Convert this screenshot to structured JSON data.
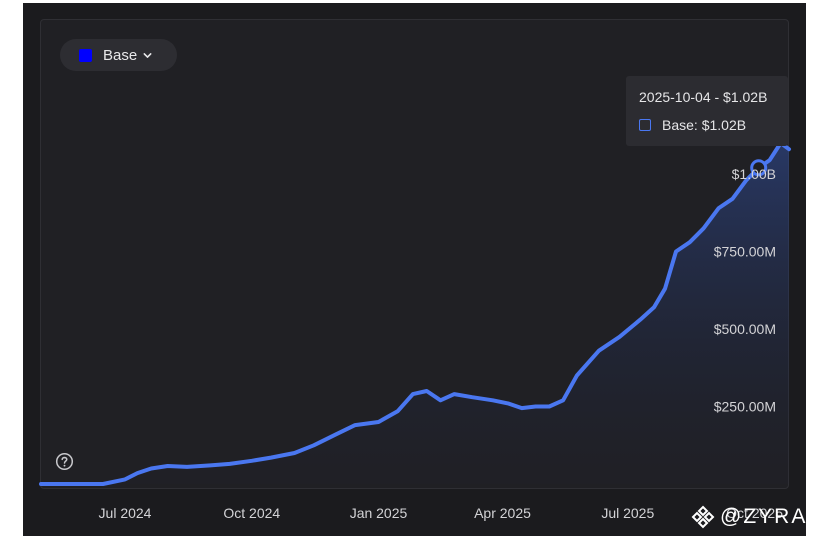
{
  "legend": {
    "label": "Base",
    "color": "#0000ff"
  },
  "tooltip": {
    "title": "2025-10-04 - $1.02B",
    "row": "Base: $1.02B"
  },
  "watermark": {
    "text": "@ZYRA"
  },
  "chart_data": {
    "type": "area",
    "series": [
      {
        "name": "Base",
        "color": "#4a77f0",
        "points": [
          [
            "2024-05-01",
            0
          ],
          [
            "2024-06-15",
            0
          ],
          [
            "2024-07-01",
            15
          ],
          [
            "2024-07-10",
            35
          ],
          [
            "2024-07-20",
            50
          ],
          [
            "2024-08-01",
            58
          ],
          [
            "2024-08-15",
            55
          ],
          [
            "2024-09-01",
            60
          ],
          [
            "2024-09-15",
            65
          ],
          [
            "2024-10-01",
            75
          ],
          [
            "2024-10-15",
            85
          ],
          [
            "2024-11-01",
            100
          ],
          [
            "2024-11-15",
            125
          ],
          [
            "2024-12-01",
            160
          ],
          [
            "2024-12-15",
            190
          ],
          [
            "2025-01-01",
            200
          ],
          [
            "2025-01-15",
            235
          ],
          [
            "2025-01-26",
            290
          ],
          [
            "2025-02-05",
            300
          ],
          [
            "2025-02-15",
            270
          ],
          [
            "2025-02-25",
            290
          ],
          [
            "2025-03-10",
            280
          ],
          [
            "2025-03-25",
            270
          ],
          [
            "2025-04-05",
            260
          ],
          [
            "2025-04-15",
            245
          ],
          [
            "2025-04-25",
            250
          ],
          [
            "2025-05-05",
            250
          ],
          [
            "2025-05-15",
            270
          ],
          [
            "2025-05-25",
            350
          ],
          [
            "2025-06-10",
            430
          ],
          [
            "2025-06-25",
            475
          ],
          [
            "2025-07-10",
            530
          ],
          [
            "2025-07-20",
            570
          ],
          [
            "2025-07-28",
            630
          ],
          [
            "2025-08-05",
            750
          ],
          [
            "2025-08-15",
            780
          ],
          [
            "2025-08-25",
            825
          ],
          [
            "2025-09-05",
            890
          ],
          [
            "2025-09-15",
            920
          ],
          [
            "2025-09-25",
            980
          ],
          [
            "2025-10-04",
            1020
          ],
          [
            "2025-10-12",
            1045
          ],
          [
            "2025-10-20",
            1100
          ],
          [
            "2025-10-26",
            1080
          ]
        ]
      }
    ],
    "x_ticks": [
      "Jul 2024",
      "Oct 2024",
      "Jan 2025",
      "Apr 2025",
      "Jul 2025",
      "Oct 2025"
    ],
    "y_ticks": [
      "$250.00M",
      "$500.00M",
      "$750.00M",
      "$1.00B"
    ],
    "xlim": [
      "2024-05-01",
      "2025-10-26"
    ],
    "ylim": [
      0,
      1100
    ],
    "highlight": {
      "x": "2025-10-04",
      "y": 1020
    },
    "grid": false
  }
}
